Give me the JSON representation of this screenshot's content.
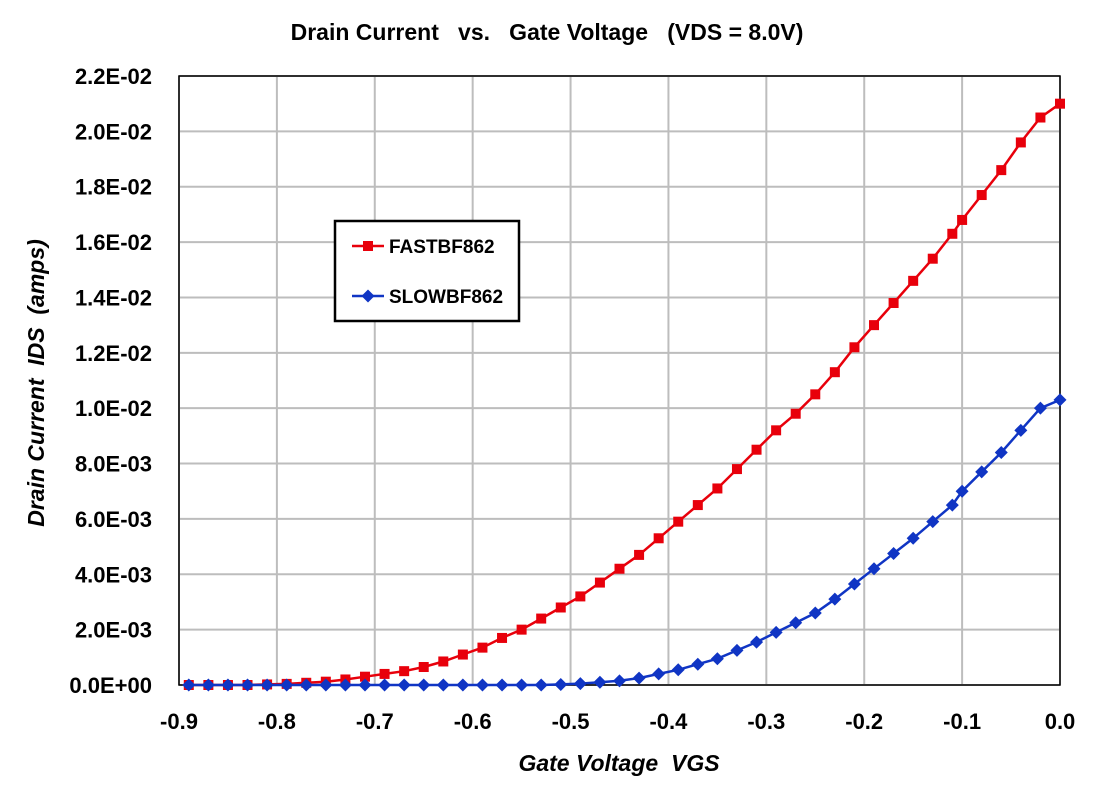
{
  "chart_data": {
    "type": "line",
    "title": "Drain Current   vs.   Gate Voltage   (VDS = 8.0V)",
    "xlabel": "Gate Voltage  VGS",
    "ylabel": "Drain Current  IDS  (amps)",
    "xlim": [
      -0.9,
      0.0
    ],
    "ylim": [
      0,
      0.022
    ],
    "x_ticks": [
      -0.9,
      -0.8,
      -0.7,
      -0.6,
      -0.5,
      -0.4,
      -0.3,
      -0.2,
      -0.1,
      0.0
    ],
    "x_tick_labels": [
      "-0.9",
      "-0.8",
      "-0.7",
      "-0.6",
      "-0.5",
      "-0.4",
      "-0.3",
      "-0.2",
      "-0.1",
      "0.0"
    ],
    "y_ticks": [
      0,
      0.002,
      0.004,
      0.006,
      0.008,
      0.01,
      0.012,
      0.014,
      0.016,
      0.018,
      0.02,
      0.022
    ],
    "y_tick_labels": [
      "0.0E+00",
      "2.0E-03",
      "4.0E-03",
      "6.0E-03",
      "8.0E-03",
      "1.0E-02",
      "1.2E-02",
      "1.4E-02",
      "1.6E-02",
      "1.8E-02",
      "2.0E-02",
      "2.2E-02"
    ],
    "grid": true,
    "legend_position": "upper-left, inside plot",
    "series": [
      {
        "name": "FASTBF862",
        "color": "#e8000b",
        "marker": "square",
        "x": [
          -0.89,
          -0.87,
          -0.85,
          -0.83,
          -0.81,
          -0.79,
          -0.77,
          -0.75,
          -0.73,
          -0.71,
          -0.69,
          -0.67,
          -0.65,
          -0.63,
          -0.61,
          -0.59,
          -0.57,
          -0.55,
          -0.53,
          -0.51,
          -0.49,
          -0.47,
          -0.45,
          -0.43,
          -0.41,
          -0.39,
          -0.37,
          -0.35,
          -0.33,
          -0.31,
          -0.29,
          -0.27,
          -0.25,
          -0.23,
          -0.21,
          -0.19,
          -0.17,
          -0.15,
          -0.13,
          -0.11,
          -0.1,
          -0.08,
          -0.06,
          -0.04,
          -0.02,
          0.0
        ],
        "values": [
          0.0,
          0.0,
          0.0,
          0.0,
          2e-05,
          4e-05,
          8e-05,
          0.00012,
          0.0002,
          0.0003,
          0.0004,
          0.0005,
          0.00065,
          0.00085,
          0.0011,
          0.00135,
          0.0017,
          0.002,
          0.0024,
          0.0028,
          0.0032,
          0.0037,
          0.0042,
          0.0047,
          0.0053,
          0.0059,
          0.0065,
          0.0071,
          0.0078,
          0.0085,
          0.0092,
          0.0098,
          0.0105,
          0.0113,
          0.0122,
          0.013,
          0.0138,
          0.0146,
          0.0154,
          0.0163,
          0.0168,
          0.0177,
          0.0186,
          0.0196,
          0.0205,
          0.021
        ]
      },
      {
        "name": "SLOWBF862",
        "color": "#1035c4",
        "marker": "diamond",
        "x": [
          -0.89,
          -0.87,
          -0.85,
          -0.83,
          -0.81,
          -0.79,
          -0.77,
          -0.75,
          -0.73,
          -0.71,
          -0.69,
          -0.67,
          -0.65,
          -0.63,
          -0.61,
          -0.59,
          -0.57,
          -0.55,
          -0.53,
          -0.51,
          -0.49,
          -0.47,
          -0.45,
          -0.43,
          -0.41,
          -0.39,
          -0.37,
          -0.35,
          -0.33,
          -0.31,
          -0.29,
          -0.27,
          -0.25,
          -0.23,
          -0.21,
          -0.19,
          -0.17,
          -0.15,
          -0.13,
          -0.11,
          -0.1,
          -0.08,
          -0.06,
          -0.04,
          -0.02,
          0.0
        ],
        "values": [
          0.0,
          0.0,
          0.0,
          0.0,
          0.0,
          0.0,
          0.0,
          0.0,
          0.0,
          0.0,
          0.0,
          0.0,
          0.0,
          0.0,
          0.0,
          0.0,
          0.0,
          0.0,
          0.0,
          2e-05,
          5e-05,
          0.0001,
          0.00015,
          0.00025,
          0.0004,
          0.00055,
          0.00075,
          0.00095,
          0.00125,
          0.00155,
          0.0019,
          0.00225,
          0.0026,
          0.0031,
          0.00365,
          0.0042,
          0.00475,
          0.0053,
          0.0059,
          0.0065,
          0.007,
          0.0077,
          0.0084,
          0.0092,
          0.01,
          0.0103
        ]
      }
    ]
  }
}
